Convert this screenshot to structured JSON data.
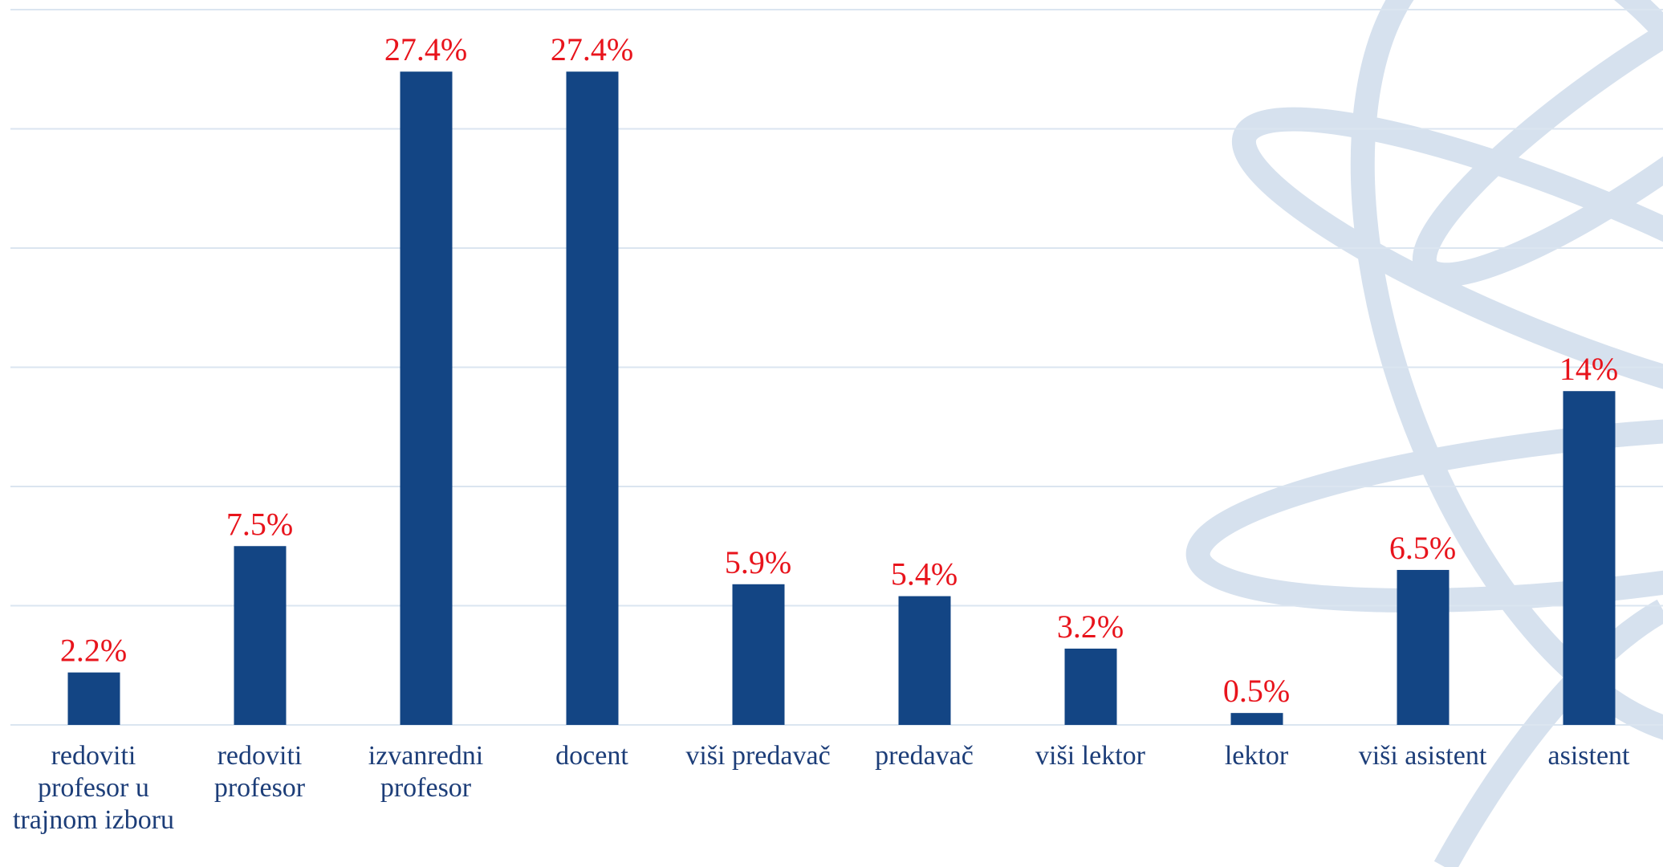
{
  "chart_data": {
    "type": "bar",
    "categories": [
      "redoviti profesor u trajnom izboru",
      "redoviti profesor",
      "izvanredni profesor",
      "docent",
      "viši predavač",
      "predavač",
      "viši lektor",
      "lektor",
      "viši asistent",
      "asistent"
    ],
    "values": [
      2.2,
      7.5,
      27.4,
      27.4,
      5.9,
      5.4,
      3.2,
      0.5,
      6.5,
      14
    ],
    "value_labels": [
      "2.2%",
      "7.5%",
      "27.4%",
      "27.4%",
      "5.9%",
      "5.4%",
      "3.2%",
      "0.5%",
      "6.5%",
      "14%"
    ],
    "color": "#134584",
    "ylim": [
      0,
      30
    ],
    "yticks": [
      0,
      5,
      10,
      15,
      20,
      25,
      30
    ],
    "grid": true
  }
}
